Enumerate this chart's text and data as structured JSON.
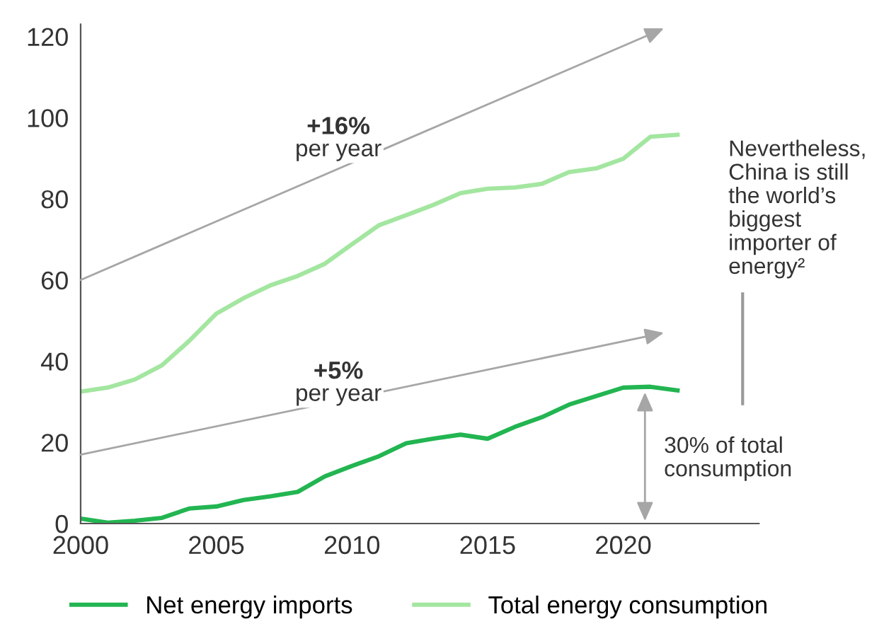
{
  "chart_data": {
    "type": "line",
    "x": [
      2000,
      2001,
      2002,
      2003,
      2004,
      2005,
      2006,
      2007,
      2008,
      2009,
      2010,
      2011,
      2012,
      2013,
      2014,
      2015,
      2016,
      2017,
      2018,
      2019,
      2020,
      2021,
      2022
    ],
    "series": [
      {
        "name": "Net energy imports",
        "color": "#22b551",
        "values": [
          1.2,
          0.2,
          0.7,
          1.4,
          3.7,
          4.2,
          5.8,
          6.7,
          7.8,
          11.6,
          14.2,
          16.6,
          19.8,
          20.9,
          21.9,
          20.9,
          23.8,
          26.2,
          29.3,
          31.4,
          33.5,
          33.7,
          32.8
        ]
      },
      {
        "name": "Total energy consumption",
        "color": "#a3e6a0",
        "values": [
          32.5,
          33.5,
          35.5,
          39,
          45,
          51.7,
          55.5,
          58.7,
          61,
          64,
          68.8,
          73.5,
          76,
          78.5,
          81.4,
          82.5,
          82.8,
          83.7,
          86.6,
          87.5,
          89.9,
          95.3,
          95.8
        ]
      }
    ],
    "annotations": [
      "+16%\nper year",
      "+5%\nper year",
      "30% of total\nconsumption",
      "Nevertheless,\nChina is still\nthe world’s\nbiggest\nimporter of\nenergy²"
    ],
    "xlim": [
      2000,
      2025
    ],
    "xticks": [
      2000,
      2005,
      2010,
      2015,
      2020
    ],
    "ylim": [
      0,
      123
    ],
    "yticks": [
      0,
      20,
      40,
      60,
      80,
      100,
      120
    ],
    "grid": false,
    "legend": "bottom",
    "line_style": "solid"
  }
}
